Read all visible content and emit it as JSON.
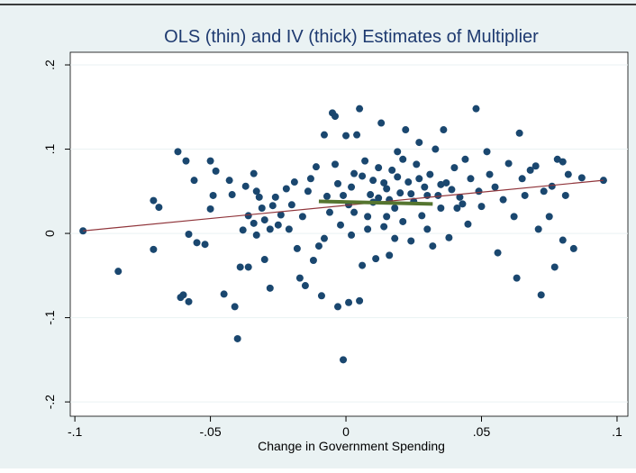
{
  "chart_data": {
    "type": "scatter",
    "title": "OLS (thin) and IV (thick) Estimates of Multiplier",
    "x_label": "Change in Government Spending",
    "xlim": [
      -0.1017,
      0.104
    ],
    "ylim": [
      -0.217,
      0.215
    ],
    "xticks": [
      {
        "value": -0.1,
        "label": "-.1"
      },
      {
        "value": -0.05,
        "label": "-.05"
      },
      0,
      {
        "value": 0.05,
        "label": ".05"
      },
      {
        "value": 0.1,
        "label": ".1"
      }
    ],
    "yticks": [
      {
        "value": -0.2,
        "label": "-.2"
      },
      {
        "value": -0.1,
        "label": "-.1"
      },
      0,
      {
        "value": 0.1,
        "label": ".1"
      },
      {
        "value": 0.2,
        "label": ".2"
      }
    ],
    "grid": true,
    "series": [
      {
        "color": "#1a476f",
        "x": [
          -0.097,
          -0.084,
          -0.071,
          -0.071,
          -0.069,
          -0.062,
          -0.061,
          -0.06,
          -0.059,
          -0.058,
          -0.058,
          -0.056,
          -0.055,
          -0.052,
          -0.05,
          -0.05,
          -0.049,
          -0.048,
          -0.045,
          -0.043,
          -0.042,
          -0.041,
          -0.04,
          -0.039,
          -0.038,
          -0.037,
          -0.036,
          -0.034,
          -0.033,
          -0.031,
          -0.03,
          -0.03,
          -0.028,
          -0.028,
          -0.026,
          -0.025,
          -0.033,
          -0.032,
          -0.036,
          -0.034,
          -0.02,
          -0.018,
          -0.017,
          -0.016,
          -0.015,
          -0.014,
          -0.013,
          -0.012,
          -0.011,
          -0.01,
          -0.009,
          -0.008,
          -0.008,
          -0.007,
          -0.006,
          -0.005,
          -0.004,
          -0.003,
          -0.003,
          -0.002,
          -0.001,
          0.0,
          0.001,
          0.001,
          0.002,
          0.003,
          0.004,
          0.005,
          0.005,
          0.006,
          0.007,
          0.008,
          0.009,
          0.01,
          0.011,
          0.012,
          0.013,
          0.014,
          0.015,
          0.016,
          0.017,
          0.018,
          0.019,
          0.02,
          0.021,
          0.022,
          0.023,
          0.024,
          0.025,
          0.026,
          0.027,
          0.028,
          0.029,
          0.03,
          0.031,
          0.032,
          0.033,
          0.034,
          0.035,
          0.036,
          0.037,
          0.038,
          0.04,
          0.041,
          0.042,
          0.044,
          0.045,
          0.046,
          0.048,
          0.049,
          0.05,
          0.052,
          0.053,
          0.055,
          0.056,
          0.058,
          0.06,
          0.062,
          0.063,
          0.064,
          0.065,
          0.066,
          0.068,
          0.07,
          0.071,
          0.072,
          0.073,
          0.075,
          0.076,
          0.077,
          0.078,
          0.08,
          0.08,
          0.081,
          0.082,
          0.084,
          0.087,
          0.095,
          -0.022,
          -0.019,
          -0.004,
          0.002,
          0.006,
          0.01,
          0.012,
          0.014,
          0.016,
          0.019,
          0.021,
          0.024,
          0.027,
          0.003,
          0.008,
          -0.001,
          0.015,
          0.03,
          0.035,
          -0.024,
          -0.027,
          -0.021,
          0.018,
          0.039,
          0.043
        ],
        "y": [
          0.003,
          -0.045,
          -0.019,
          0.039,
          0.031,
          0.097,
          -0.076,
          -0.073,
          0.086,
          -0.001,
          -0.081,
          0.063,
          -0.011,
          -0.013,
          0.029,
          0.086,
          0.045,
          0.074,
          -0.072,
          0.063,
          0.046,
          -0.087,
          -0.125,
          -0.04,
          0.004,
          0.056,
          -0.04,
          0.071,
          0.05,
          0.03,
          0.016,
          -0.031,
          0.005,
          -0.065,
          0.043,
          0.01,
          -0.002,
          0.043,
          0.021,
          0.012,
          0.034,
          -0.018,
          -0.053,
          0.02,
          -0.062,
          0.05,
          0.065,
          -0.032,
          0.079,
          -0.015,
          -0.074,
          0.117,
          -0.006,
          0.044,
          0.025,
          0.143,
          0.139,
          -0.087,
          0.059,
          0.01,
          -0.15,
          0.116,
          0.034,
          -0.082,
          -0.002,
          0.071,
          0.117,
          -0.08,
          0.148,
          -0.038,
          0.086,
          0.02,
          0.046,
          0.063,
          -0.03,
          0.042,
          0.131,
          0.008,
          0.053,
          -0.026,
          0.075,
          0.03,
          0.097,
          0.048,
          0.014,
          0.123,
          0.061,
          -0.009,
          0.038,
          0.082,
          0.108,
          0.021,
          0.055,
          0.005,
          0.07,
          -0.015,
          0.1,
          0.045,
          0.03,
          0.123,
          0.06,
          -0.005,
          0.078,
          0.03,
          0.043,
          0.088,
          0.011,
          0.065,
          0.148,
          0.05,
          0.032,
          0.097,
          0.07,
          0.055,
          -0.023,
          0.04,
          0.083,
          0.02,
          -0.053,
          0.119,
          0.065,
          0.045,
          0.075,
          0.08,
          0.005,
          -0.073,
          0.05,
          0.02,
          0.056,
          -0.04,
          0.088,
          0.085,
          -0.008,
          0.045,
          0.07,
          -0.018,
          0.066,
          0.063,
          0.053,
          0.061,
          0.082,
          0.055,
          0.068,
          0.037,
          0.078,
          0.06,
          0.04,
          0.067,
          0.088,
          0.047,
          0.065,
          0.025,
          0.005,
          0.045,
          0.02,
          0.045,
          0.058,
          0.022,
          0.033,
          0.005,
          -0.006,
          0.052,
          0.035
        ]
      }
    ],
    "lines": [
      {
        "color": "#90353b",
        "width": 1.2,
        "x": [
          -0.097,
          0.095
        ],
        "y": [
          0.003,
          0.063
        ]
      },
      {
        "color": "#55752f",
        "width": 4,
        "x": [
          -0.01,
          0.032
        ],
        "y": [
          0.038,
          0.035
        ]
      }
    ]
  }
}
